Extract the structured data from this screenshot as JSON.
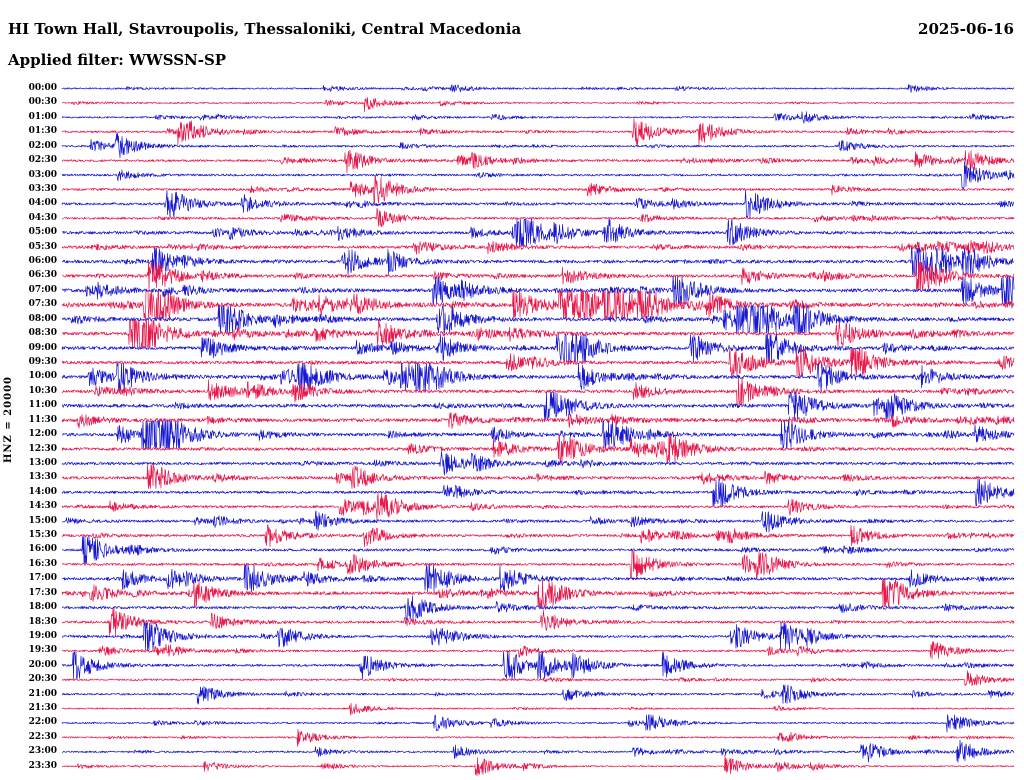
{
  "chart_data": {
    "type": "seismogram-helicorder",
    "title": "HI Town Hall, Stavroupolis, Thessaloniki, Central Macedonia",
    "date": "2025-06-16",
    "filter": "Applied filter: WWSSN-SP",
    "channel_scale_label": "HNZ = 20000",
    "row_interval_minutes": 30,
    "time_range": [
      "00:00",
      "23:30"
    ],
    "legend_position": "none",
    "grid": false,
    "colors": {
      "blue": "#1717d1",
      "red": "#e8174b"
    },
    "rows": [
      {
        "label": "00:00",
        "color": "blue",
        "intensity": 1.0
      },
      {
        "label": "00:30",
        "color": "red",
        "intensity": 0.9
      },
      {
        "label": "01:00",
        "color": "blue",
        "intensity": 1.0
      },
      {
        "label": "01:30",
        "color": "red",
        "intensity": 1.3
      },
      {
        "label": "02:00",
        "color": "blue",
        "intensity": 1.2
      },
      {
        "label": "02:30",
        "color": "red",
        "intensity": 1.4
      },
      {
        "label": "03:00",
        "color": "blue",
        "intensity": 1.3
      },
      {
        "label": "03:30",
        "color": "red",
        "intensity": 1.5
      },
      {
        "label": "04:00",
        "color": "blue",
        "intensity": 1.6
      },
      {
        "label": "04:30",
        "color": "red",
        "intensity": 1.4
      },
      {
        "label": "05:00",
        "color": "blue",
        "intensity": 1.8
      },
      {
        "label": "05:30",
        "color": "red",
        "intensity": 1.8
      },
      {
        "label": "06:00",
        "color": "blue",
        "intensity": 2.0
      },
      {
        "label": "06:30",
        "color": "red",
        "intensity": 1.9
      },
      {
        "label": "07:00",
        "color": "blue",
        "intensity": 2.2
      },
      {
        "label": "07:30",
        "color": "red",
        "intensity": 2.4
      },
      {
        "label": "08:00",
        "color": "blue",
        "intensity": 2.2
      },
      {
        "label": "08:30",
        "color": "red",
        "intensity": 2.2
      },
      {
        "label": "09:00",
        "color": "blue",
        "intensity": 2.0
      },
      {
        "label": "09:30",
        "color": "red",
        "intensity": 2.0
      },
      {
        "label": "10:00",
        "color": "blue",
        "intensity": 2.2
      },
      {
        "label": "10:30",
        "color": "red",
        "intensity": 2.0
      },
      {
        "label": "11:00",
        "color": "blue",
        "intensity": 2.2
      },
      {
        "label": "11:30",
        "color": "red",
        "intensity": 2.2
      },
      {
        "label": "12:00",
        "color": "blue",
        "intensity": 2.0
      },
      {
        "label": "12:30",
        "color": "red",
        "intensity": 1.9
      },
      {
        "label": "13:00",
        "color": "blue",
        "intensity": 1.8
      },
      {
        "label": "13:30",
        "color": "red",
        "intensity": 1.8
      },
      {
        "label": "14:00",
        "color": "blue",
        "intensity": 1.6
      },
      {
        "label": "14:30",
        "color": "red",
        "intensity": 1.5
      },
      {
        "label": "15:00",
        "color": "blue",
        "intensity": 1.6
      },
      {
        "label": "15:30",
        "color": "red",
        "intensity": 1.6
      },
      {
        "label": "16:00",
        "color": "blue",
        "intensity": 1.6
      },
      {
        "label": "16:30",
        "color": "red",
        "intensity": 1.5
      },
      {
        "label": "17:00",
        "color": "blue",
        "intensity": 1.7
      },
      {
        "label": "17:30",
        "color": "red",
        "intensity": 1.9
      },
      {
        "label": "18:00",
        "color": "blue",
        "intensity": 1.7
      },
      {
        "label": "18:30",
        "color": "red",
        "intensity": 1.6
      },
      {
        "label": "19:00",
        "color": "blue",
        "intensity": 1.5
      },
      {
        "label": "19:30",
        "color": "red",
        "intensity": 1.2
      },
      {
        "label": "20:00",
        "color": "blue",
        "intensity": 1.4
      },
      {
        "label": "20:30",
        "color": "red",
        "intensity": 1.1
      },
      {
        "label": "21:00",
        "color": "blue",
        "intensity": 1.2
      },
      {
        "label": "21:30",
        "color": "red",
        "intensity": 0.9
      },
      {
        "label": "22:00",
        "color": "blue",
        "intensity": 1.0
      },
      {
        "label": "22:30",
        "color": "red",
        "intensity": 1.0
      },
      {
        "label": "23:00",
        "color": "blue",
        "intensity": 1.1
      },
      {
        "label": "23:30",
        "color": "red",
        "intensity": 0.9
      }
    ]
  }
}
